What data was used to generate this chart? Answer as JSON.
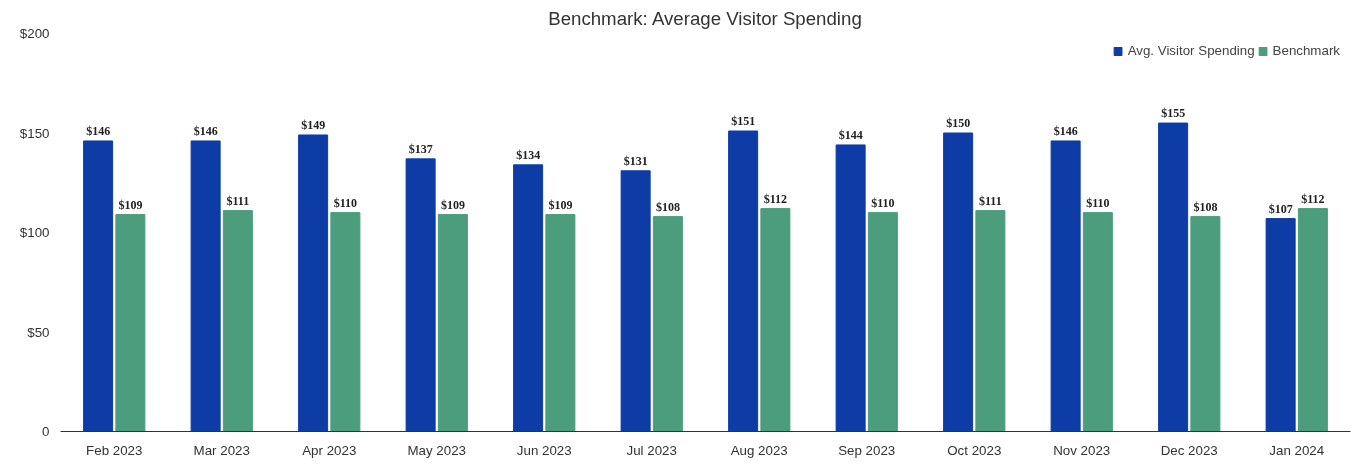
{
  "chart_data": {
    "type": "bar",
    "title": "Benchmark: Average Visitor Spending",
    "categories": [
      "Feb 2023",
      "Mar 2023",
      "Apr 2023",
      "May 2023",
      "Jun 2023",
      "Jul 2023",
      "Aug 2023",
      "Sep 2023",
      "Oct 2023",
      "Nov 2023",
      "Dec 2023",
      "Jan 2024"
    ],
    "series": [
      {
        "name": "Avg. Visitor Spending",
        "color": "#0d3ca6",
        "values": [
          146,
          146,
          149,
          137,
          134,
          131,
          151,
          144,
          150,
          146,
          155,
          107
        ],
        "value_labels": [
          "$146",
          "$146",
          "$149",
          "$137",
          "$134",
          "$131",
          "$151",
          "$144",
          "$150",
          "$146",
          "$155",
          "$107"
        ]
      },
      {
        "name": "Benchmark",
        "color": "#4b9d7d",
        "values": [
          109,
          111,
          110,
          109,
          109,
          108,
          112,
          110,
          111,
          110,
          108,
          112
        ],
        "value_labels": [
          "$109",
          "$111",
          "$110",
          "$109",
          "$109",
          "$108",
          "$112",
          "$110",
          "$111",
          "$110",
          "$108",
          "$112"
        ]
      }
    ],
    "ylim": [
      0,
      200
    ],
    "yticks": [
      0,
      {
        "value": 50,
        "label": "$50"
      },
      {
        "value": 100,
        "label": "$100"
      },
      {
        "value": 150,
        "label": "$150"
      },
      {
        "value": 200,
        "label": "$200"
      }
    ],
    "grid": false,
    "legend": "top right"
  }
}
